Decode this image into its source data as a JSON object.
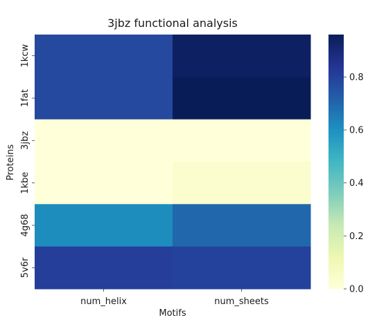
{
  "chart_data": {
    "type": "heatmap",
    "title": "3jbz functional analysis",
    "xlabel": "Motifs",
    "ylabel": "Proteins",
    "x_categories": [
      "num_helix",
      "num_sheets"
    ],
    "y_categories": [
      "1kcw",
      "1fat",
      "3jbz",
      "1kbe",
      "4g68",
      "5v6r"
    ],
    "values": [
      [
        0.78,
        0.94
      ],
      [
        0.78,
        0.96
      ],
      [
        0.0,
        0.0
      ],
      [
        0.0,
        0.03
      ],
      [
        0.61,
        0.7
      ],
      [
        0.81,
        0.8
      ]
    ],
    "vmin": 0,
    "vmax": 0.96,
    "colormap": "YlGnBu",
    "colorbar": {
      "ticks": [
        0.0,
        0.2,
        0.4,
        0.6,
        0.8
      ],
      "tick_labels": [
        "0.0",
        "0.2",
        "0.4",
        "0.6",
        "0.8"
      ]
    },
    "grid": false
  }
}
